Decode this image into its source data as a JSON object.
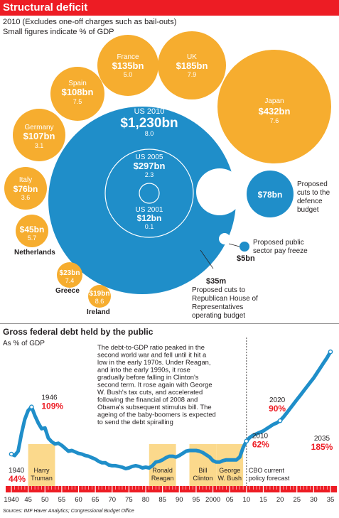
{
  "header": {
    "title": "Structural deficit",
    "subtitle_1": "2010 (Excludes one-off charges such as bail-outs)",
    "subtitle_2": "Small figures indicate % of GDP"
  },
  "colors": {
    "red": "#ed1c24",
    "orange": "#f6ad2f",
    "blue": "#1f8ec9",
    "band": "#fbd98c",
    "dark_text": "#231f20"
  },
  "chart_data": [
    {
      "type": "bubble",
      "title": "Structural deficit",
      "subtitle": "2010 (Excludes one-off charges such as bail-outs)",
      "note": "Small figures indicate % of GDP",
      "bubbles": [
        {
          "name": "US 2010",
          "value": "$1,230bn",
          "value_bn": 1230,
          "pct_gdp": "8.0"
        },
        {
          "name": "US 2005",
          "value": "$297bn",
          "value_bn": 297,
          "pct_gdp": "2.3"
        },
        {
          "name": "US 2001",
          "value": "$12bn",
          "value_bn": 12,
          "pct_gdp": "0.1"
        },
        {
          "name": "France",
          "value": "$135bn",
          "value_bn": 135,
          "pct_gdp": "5.0"
        },
        {
          "name": "UK",
          "value": "$185bn",
          "value_bn": 185,
          "pct_gdp": "7.9"
        },
        {
          "name": "Japan",
          "value": "$432bn",
          "value_bn": 432,
          "pct_gdp": "7.6"
        },
        {
          "name": "Spain",
          "value": "$108bn",
          "value_bn": 108,
          "pct_gdp": "7.5"
        },
        {
          "name": "Germany",
          "value": "$107bn",
          "value_bn": 107,
          "pct_gdp": "3.1"
        },
        {
          "name": "Italy",
          "value": "$76bn",
          "value_bn": 76,
          "pct_gdp": "3.6"
        },
        {
          "name": "Netherlands",
          "value": "$45bn",
          "value_bn": 45,
          "pct_gdp": "5.7"
        },
        {
          "name": "Greece",
          "value": "$23bn",
          "value_bn": 23,
          "pct_gdp": "7.4"
        },
        {
          "name": "Ireland",
          "value": "$19bn",
          "value_bn": 19,
          "pct_gdp": "8.6"
        }
      ],
      "proposed_cuts": [
        {
          "label": "Proposed cuts to the defence budget",
          "value": "$78bn",
          "value_bn": 78
        },
        {
          "label": "Proposed public sector pay freeze",
          "value": "$5bn",
          "value_bn": 5
        },
        {
          "label": "Proposed cuts to Republican House of Representatives operating budget",
          "value": "$35m",
          "value_bn": 0.035
        }
      ]
    },
    {
      "type": "line",
      "title": "Gross federal debt held by the public",
      "ylabel": "As % of GDP",
      "x_tick_labels": [
        "1940",
        "45",
        "50",
        "55",
        "60",
        "65",
        "70",
        "75",
        "80",
        "85",
        "90",
        "95",
        "2000",
        "05",
        "10",
        "15",
        "20",
        "25",
        "30",
        "35"
      ],
      "points": [
        {
          "x": 1940,
          "y": 44
        },
        {
          "x": 1941,
          "y": 42
        },
        {
          "x": 1942,
          "y": 48
        },
        {
          "x": 1943,
          "y": 72
        },
        {
          "x": 1944,
          "y": 92
        },
        {
          "x": 1945,
          "y": 104
        },
        {
          "x": 1946,
          "y": 109
        },
        {
          "x": 1947,
          "y": 97
        },
        {
          "x": 1948,
          "y": 87
        },
        {
          "x": 1949,
          "y": 79
        },
        {
          "x": 1950,
          "y": 80
        },
        {
          "x": 1951,
          "y": 66
        },
        {
          "x": 1952,
          "y": 61
        },
        {
          "x": 1953,
          "y": 58
        },
        {
          "x": 1954,
          "y": 59
        },
        {
          "x": 1955,
          "y": 56
        },
        {
          "x": 1956,
          "y": 52
        },
        {
          "x": 1957,
          "y": 48
        },
        {
          "x": 1958,
          "y": 49
        },
        {
          "x": 1959,
          "y": 47
        },
        {
          "x": 1960,
          "y": 45
        },
        {
          "x": 1961,
          "y": 44
        },
        {
          "x": 1962,
          "y": 42
        },
        {
          "x": 1963,
          "y": 41
        },
        {
          "x": 1964,
          "y": 39
        },
        {
          "x": 1965,
          "y": 37
        },
        {
          "x": 1966,
          "y": 34
        },
        {
          "x": 1967,
          "y": 32
        },
        {
          "x": 1968,
          "y": 32
        },
        {
          "x": 1969,
          "y": 29
        },
        {
          "x": 1970,
          "y": 28
        },
        {
          "x": 1971,
          "y": 28
        },
        {
          "x": 1972,
          "y": 27
        },
        {
          "x": 1973,
          "y": 26
        },
        {
          "x": 1974,
          "y": 24
        },
        {
          "x": 1975,
          "y": 25
        },
        {
          "x": 1976,
          "y": 27
        },
        {
          "x": 1977,
          "y": 28
        },
        {
          "x": 1978,
          "y": 27
        },
        {
          "x": 1979,
          "y": 25
        },
        {
          "x": 1980,
          "y": 26
        },
        {
          "x": 1981,
          "y": 25
        },
        {
          "x": 1982,
          "y": 28
        },
        {
          "x": 1983,
          "y": 33
        },
        {
          "x": 1984,
          "y": 34
        },
        {
          "x": 1985,
          "y": 36
        },
        {
          "x": 1986,
          "y": 39
        },
        {
          "x": 1987,
          "y": 41
        },
        {
          "x": 1988,
          "y": 41
        },
        {
          "x": 1989,
          "y": 40
        },
        {
          "x": 1990,
          "y": 42
        },
        {
          "x": 1991,
          "y": 45
        },
        {
          "x": 1992,
          "y": 48
        },
        {
          "x": 1993,
          "y": 49
        },
        {
          "x": 1994,
          "y": 49
        },
        {
          "x": 1995,
          "y": 49
        },
        {
          "x": 1996,
          "y": 48
        },
        {
          "x": 1997,
          "y": 46
        },
        {
          "x": 1998,
          "y": 43
        },
        {
          "x": 1999,
          "y": 40
        },
        {
          "x": 2000,
          "y": 35
        },
        {
          "x": 2001,
          "y": 33
        },
        {
          "x": 2002,
          "y": 33
        },
        {
          "x": 2003,
          "y": 35
        },
        {
          "x": 2004,
          "y": 36
        },
        {
          "x": 2005,
          "y": 36
        },
        {
          "x": 2006,
          "y": 36
        },
        {
          "x": 2007,
          "y": 36
        },
        {
          "x": 2008,
          "y": 40
        },
        {
          "x": 2009,
          "y": 53
        },
        {
          "x": 2010,
          "y": 62
        },
        {
          "x": 2011,
          "y": 67
        },
        {
          "x": 2012,
          "y": 70
        },
        {
          "x": 2013,
          "y": 72
        },
        {
          "x": 2014,
          "y": 74
        },
        {
          "x": 2015,
          "y": 76
        },
        {
          "x": 2016,
          "y": 79
        },
        {
          "x": 2017,
          "y": 82
        },
        {
          "x": 2018,
          "y": 85
        },
        {
          "x": 2019,
          "y": 87
        },
        {
          "x": 2020,
          "y": 90
        },
        {
          "x": 2021,
          "y": 95
        },
        {
          "x": 2022,
          "y": 101
        },
        {
          "x": 2023,
          "y": 107
        },
        {
          "x": 2024,
          "y": 113
        },
        {
          "x": 2025,
          "y": 119
        },
        {
          "x": 2026,
          "y": 125
        },
        {
          "x": 2027,
          "y": 131
        },
        {
          "x": 2028,
          "y": 137
        },
        {
          "x": 2029,
          "y": 143
        },
        {
          "x": 2030,
          "y": 149
        },
        {
          "x": 2031,
          "y": 156
        },
        {
          "x": 2032,
          "y": 163
        },
        {
          "x": 2033,
          "y": 170
        },
        {
          "x": 2034,
          "y": 177
        },
        {
          "x": 2035,
          "y": 185
        }
      ],
      "annotated_points": [
        {
          "year": "1940",
          "value": "44%",
          "x": 1940,
          "y": 44
        },
        {
          "year": "1946",
          "value": "109%",
          "x": 1946,
          "y": 109
        },
        {
          "year": "2010",
          "value": "62%",
          "x": 2010,
          "y": 62
        },
        {
          "year": "2020",
          "value": "90%",
          "x": 2020,
          "y": 90
        },
        {
          "year": "2035",
          "value": "185%",
          "x": 2035,
          "y": 185
        }
      ],
      "bands": [
        {
          "label_1": "Harry",
          "label_2": "Truman",
          "start": 1945,
          "end": 1953
        },
        {
          "label_1": "Ronald",
          "label_2": "Reagan",
          "start": 1981,
          "end": 1989
        },
        {
          "label_1": "Bill",
          "label_2": "Clinton",
          "start": 1993,
          "end": 2001
        },
        {
          "label_1": "George",
          "label_2": "W. Bush",
          "start": 2001,
          "end": 2009
        }
      ],
      "forecast_label_1": "CBO current",
      "forecast_label_2": "policy forecast",
      "forecast_start": 2010,
      "annotation_text": [
        "The debt-to-GDP ratio peaked in the",
        "second world war and fell until it hit a",
        "low in the early 1970s. Under Reagan,",
        "and into the early 1990s, it rose",
        "gradually before falling in Clinton's",
        "second term. It rose again with George",
        "W. Bush's tax cuts, and accelerated",
        "following the financial of 2008 and",
        "Obama's subsequent stimulus bill. The",
        "ageing of the baby-boomers is expected",
        "to send the debt spiralling"
      ]
    }
  ],
  "source": "Sources: IMF Haver Analytics; Congressional Budget Office"
}
